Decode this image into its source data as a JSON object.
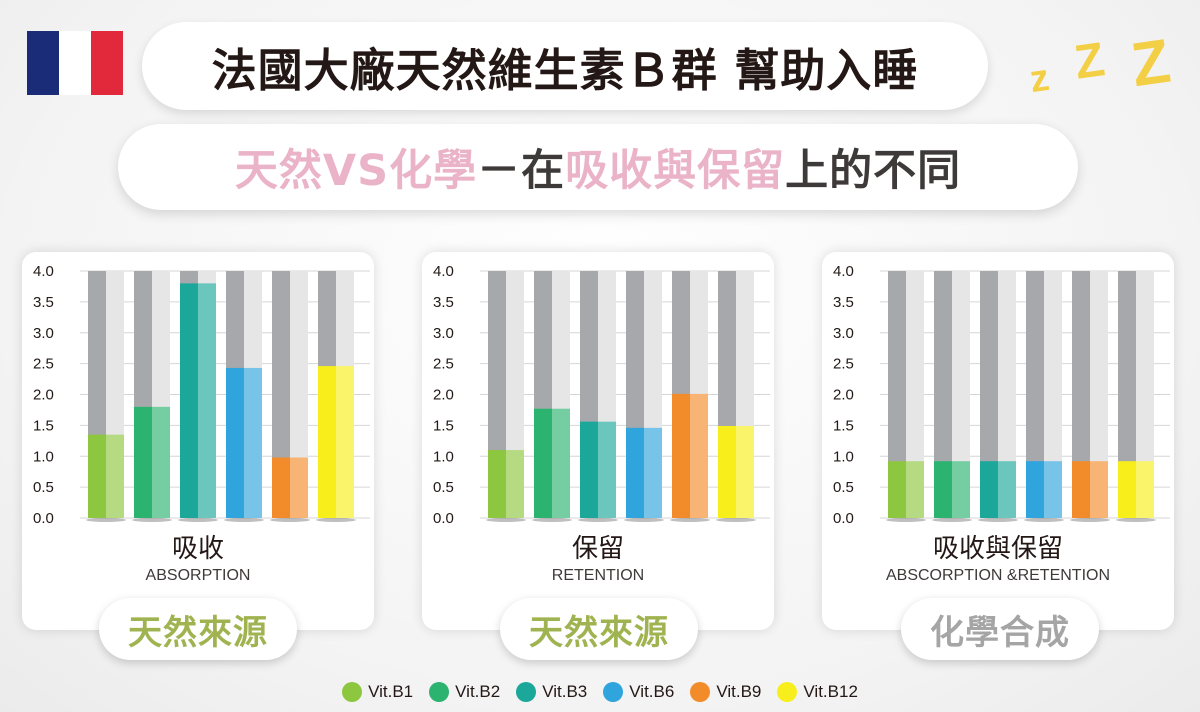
{
  "header": {
    "title": "法國大廠天然維生素Ｂ群 幫助入睡",
    "zzz": [
      "z",
      "Z",
      "Z"
    ],
    "flag_colors": [
      "#1a2c77",
      "#ffffff",
      "#e2293b"
    ]
  },
  "subtitle": {
    "part1": "天然VS化學",
    "part2": "－在",
    "part3": "吸收與保留",
    "part4": "上的不同"
  },
  "colors": {
    "b1": "#8dc63f",
    "b2": "#2bb36f",
    "b3": "#1ba89b",
    "b6": "#2fa4dd",
    "b9": "#f28c2a",
    "b12": "#f7ee1c",
    "bar_bg": "#a7a8ab",
    "bar_bg_light": "#e6e6e7",
    "pink": "#eab3c7",
    "green_label": "#9fb451",
    "gray_label": "#a5a5a5"
  },
  "legend": [
    "Vit.B1",
    "Vit.B2",
    "Vit.B3",
    "Vit.B6",
    "Vit.B9",
    "Vit.B12"
  ],
  "chart_data": [
    {
      "type": "bar",
      "title": "吸收",
      "subtitle": "ABSORPTION",
      "categories": [
        "Vit.B1",
        "Vit.B2",
        "Vit.B3",
        "Vit.B6",
        "Vit.B9",
        "Vit.B12"
      ],
      "values": [
        1.35,
        1.8,
        3.8,
        2.43,
        0.98,
        2.46
      ],
      "ylim": [
        0,
        4
      ],
      "yticks": [
        "0.0",
        "0.5",
        "1.0",
        "1.5",
        "2.0",
        "2.5",
        "3.0",
        "3.5",
        "4.0"
      ],
      "label": "天然來源",
      "grid": true
    },
    {
      "type": "bar",
      "title": "保留",
      "subtitle": "RETENTION",
      "categories": [
        "Vit.B1",
        "Vit.B2",
        "Vit.B3",
        "Vit.B6",
        "Vit.B9",
        "Vit.B12"
      ],
      "values": [
        1.1,
        1.77,
        1.56,
        1.46,
        2.01,
        1.49
      ],
      "ylim": [
        0,
        4
      ],
      "yticks": [
        "0.0",
        "0.5",
        "1.0",
        "1.5",
        "2.0",
        "2.5",
        "3.0",
        "3.5",
        "4.0"
      ],
      "label": "天然來源",
      "grid": true
    },
    {
      "type": "bar",
      "title": "吸收與保留",
      "subtitle": "ABSCORPTION &RETENTION",
      "categories": [
        "Vit.B1",
        "Vit.B2",
        "Vit.B3",
        "Vit.B6",
        "Vit.B9",
        "Vit.B12"
      ],
      "values": [
        0.92,
        0.92,
        0.92,
        0.92,
        0.92,
        0.92
      ],
      "ylim": [
        0,
        4
      ],
      "yticks": [
        "0.0",
        "0.5",
        "1.0",
        "1.5",
        "2.0",
        "2.5",
        "3.0",
        "3.5",
        "4.0"
      ],
      "label": "化學合成",
      "grid": true
    }
  ]
}
